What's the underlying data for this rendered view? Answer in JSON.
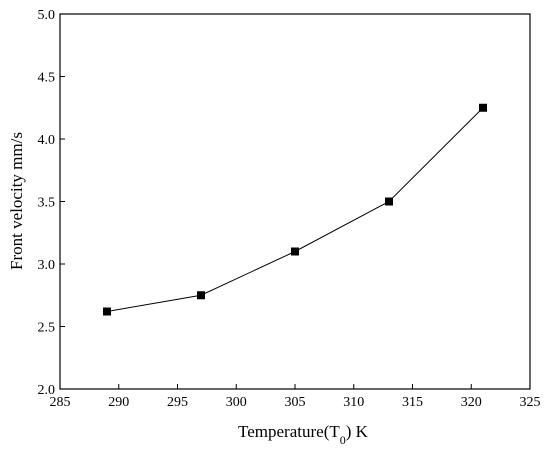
{
  "chart_data": {
    "type": "line",
    "xlabel": "Temperature(T",
    "xlabel_sub": "0",
    "xlabel_unit": ")  K",
    "ylabel": "Front velocity  mm/s",
    "xlim": [
      285,
      325
    ],
    "ylim": [
      2.0,
      5.0
    ],
    "xticks": [
      "285",
      "290",
      "295",
      "300",
      "305",
      "310",
      "315",
      "320",
      "325"
    ],
    "yticks": [
      "2.0",
      "2.5",
      "3.0",
      "3.5",
      "4.0",
      "4.5",
      "5.0"
    ],
    "grid": false,
    "marker": "square",
    "color": "#000000",
    "series": [
      {
        "x": [
          289,
          297,
          305,
          313,
          321
        ],
        "y": [
          2.62,
          2.75,
          3.1,
          3.5,
          4.25
        ]
      }
    ]
  }
}
